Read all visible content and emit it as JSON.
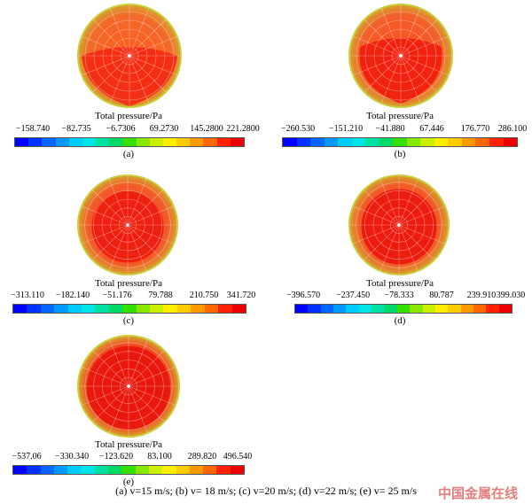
{
  "panels": [
    {
      "id": "a",
      "letter": "(a)",
      "legend_title": "Total pressure/Pa",
      "ticks": [
        "−158.740",
        "−82.735",
        "−6.7306",
        "69.2730",
        "145.2800",
        "221.2800"
      ]
    },
    {
      "id": "b",
      "letter": "(b)",
      "legend_title": "Total pressure/Pa",
      "ticks": [
        "−260.530",
        "−151.210",
        "−41.880",
        "67.446",
        "176.770",
        "286.100"
      ]
    },
    {
      "id": "c",
      "letter": "(c)",
      "legend_title": "Total pressure/Pa",
      "ticks": [
        "−313.110",
        "−182.140",
        "−51.176",
        "79.788",
        "210.750",
        "341.720"
      ]
    },
    {
      "id": "d",
      "letter": "(d)",
      "legend_title": "Total pressure/Pa",
      "ticks": [
        "−396.570",
        "−237.450",
        "−78.333",
        "80.787",
        "239.910",
        "399.030"
      ]
    },
    {
      "id": "e",
      "letter": "(e)",
      "legend_title": "Total pressure/Pa",
      "ticks": [
        "−537.06",
        "−330.340",
        "−123.620",
        "83.100",
        "289.820",
        "496.540"
      ]
    }
  ],
  "caption": "(a)  v=15  m/s;  (b)  v=  18  m/s;  (c)  v=20  m/s;  (d)  v=22  m/s;  (e)  v=  25 m/s",
  "watermark": "中国金属在线",
  "colorbar_colors": [
    "#0000ff",
    "#0033ff",
    "#0066ff",
    "#0099ff",
    "#00ccff",
    "#00e5e5",
    "#00e0a0",
    "#00d966",
    "#33e000",
    "#88e800",
    "#ccee00",
    "#ffee00",
    "#ffcc00",
    "#ff9900",
    "#ff6600",
    "#ff2200",
    "#ee0000"
  ]
}
